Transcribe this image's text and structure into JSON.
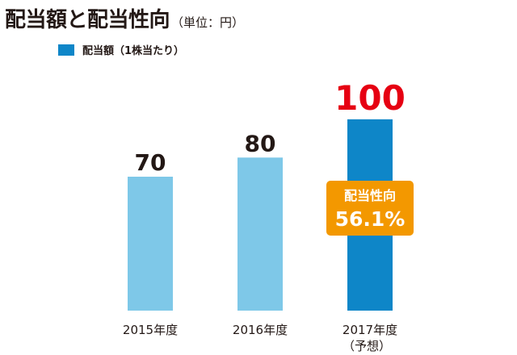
{
  "title": "配当額と配当性向",
  "unit": "（単位：円）",
  "colors": {
    "bar_actual": "#7ec8e8",
    "bar_forecast": "#0e86c8",
    "highlight_value": "#e60012",
    "badge": "#f39800",
    "text": "#231815"
  },
  "chart_data": {
    "type": "bar",
    "categories": [
      "2015年度",
      "2016年度",
      "2017年度\n（予想）"
    ],
    "series": [
      {
        "name": "配当額（1株当たり）",
        "values": [
          70,
          80,
          100
        ]
      }
    ],
    "data_labels": [
      "70",
      "80",
      "100"
    ],
    "annotation": {
      "label": "配当性向",
      "value": "56.1%",
      "category": "2017年度\n（予想）"
    },
    "ylim": [
      0,
      105
    ],
    "grid": false,
    "legend_position": "top-left"
  }
}
